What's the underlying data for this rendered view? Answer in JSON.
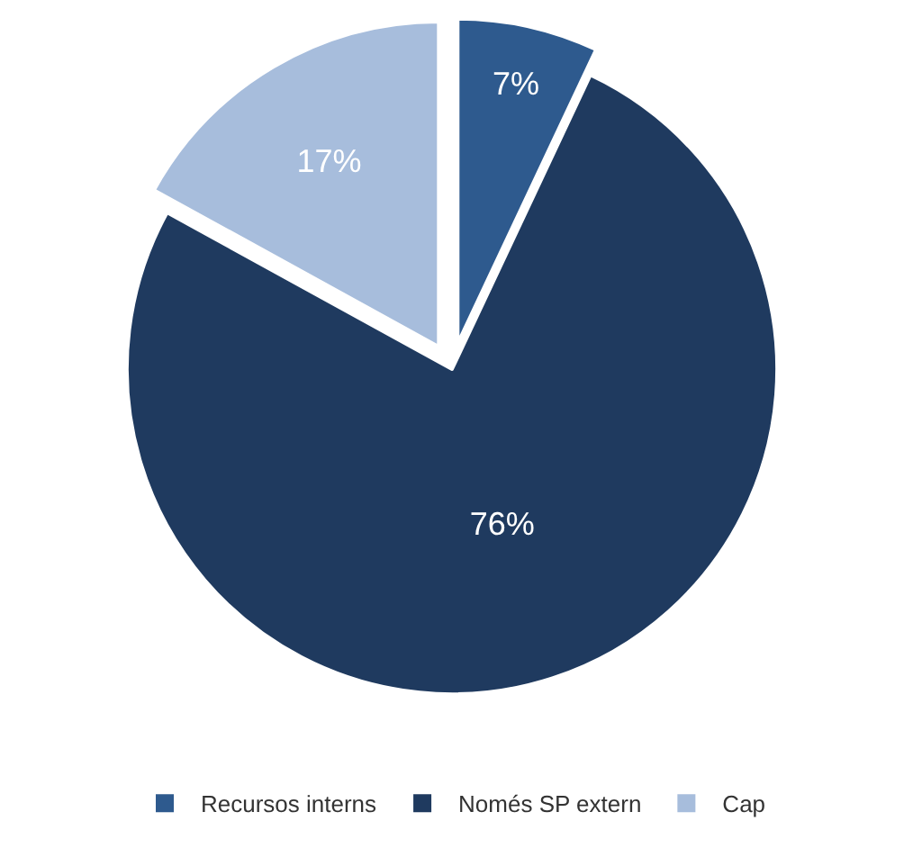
{
  "chart_data": {
    "type": "pie",
    "categories": [
      "Recursos interns",
      "Només SP extern",
      "Cap"
    ],
    "values": [
      7,
      76,
      17
    ],
    "colors": [
      "#2e5a8e",
      "#1f3a5f",
      "#a7bddc"
    ],
    "value_labels": [
      "7%",
      "76%",
      "17%"
    ],
    "legend": "bottom"
  }
}
